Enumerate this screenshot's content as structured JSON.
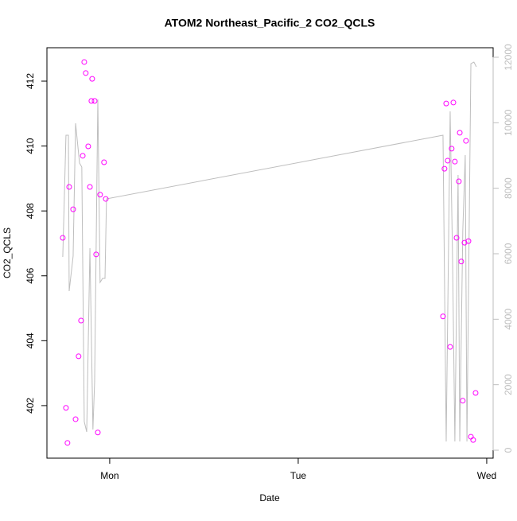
{
  "chart_data": {
    "type": "scatter",
    "title": "ATOM2 Northeast_Pacific_2 CO2_QCLS",
    "x_label": "Date",
    "y_label": "CO2_QCLS",
    "xlim": [
      0.667,
      3.034
    ],
    "xticks": [
      {
        "value": 1,
        "label": "Mon"
      },
      {
        "value": 2,
        "label": "Tue"
      },
      {
        "value": 3,
        "label": "Wed"
      }
    ],
    "ylim": [
      400.38,
      413.03
    ],
    "yticks": [
      402,
      404,
      406,
      408,
      410,
      412
    ],
    "y2lim": [
      -243,
      12291
    ],
    "y2ticks": [
      0,
      2000,
      4000,
      6000,
      8000,
      10000,
      12000
    ],
    "y2_color": "#bebebe",
    "series": [
      {
        "type": "line",
        "axis": "y2",
        "color": "#bebebe",
        "x": [
          0.751,
          0.768,
          0.781,
          0.785,
          0.806,
          0.819,
          0.84,
          0.852,
          0.865,
          0.878,
          0.895,
          0.911,
          0.92,
          0.937,
          0.949,
          0.962,
          0.975,
          0.983,
          2.768,
          2.785,
          2.806,
          2.819,
          2.831,
          2.848,
          2.857,
          2.873,
          2.886,
          2.895,
          2.916,
          2.932,
          2.945
        ],
        "values": [
          5902,
          9619,
          9619,
          4858,
          5927,
          9983,
          8769,
          8647,
          874,
          559,
          6170,
          632,
          2089,
          10712,
          5125,
          5247,
          5247,
          7676,
          9619,
          267,
          10347,
          5732,
          267,
          8404,
          267,
          6704,
          9012,
          267,
          11805,
          11853,
          11708
        ]
      },
      {
        "type": "scatter",
        "color": "#ff00ff",
        "x": [
          0.751,
          0.768,
          0.776,
          0.785,
          0.806,
          0.819,
          0.835,
          0.848,
          0.857,
          0.865,
          0.873,
          0.886,
          0.895,
          0.903,
          0.907,
          0.92,
          0.928,
          0.937,
          0.949,
          0.97,
          0.979,
          2.768,
          2.776,
          2.785,
          2.793,
          2.806,
          2.814,
          2.823,
          2.831,
          2.84,
          2.852,
          2.857,
          2.865,
          2.873,
          2.882,
          2.89,
          2.903,
          2.916,
          2.928,
          2.941
        ],
        "values": [
          407.17,
          401.93,
          400.85,
          408.74,
          408.05,
          401.58,
          403.52,
          404.62,
          409.7,
          412.59,
          412.25,
          409.99,
          408.74,
          411.39,
          412.07,
          411.39,
          406.66,
          401.17,
          408.5,
          409.5,
          408.37,
          404.75,
          409.3,
          411.31,
          409.55,
          403.81,
          409.92,
          411.34,
          409.52,
          407.17,
          408.91,
          410.41,
          406.44,
          402.15,
          407.02,
          410.16,
          407.07,
          401.04,
          400.94,
          402.39
        ]
      }
    ]
  }
}
